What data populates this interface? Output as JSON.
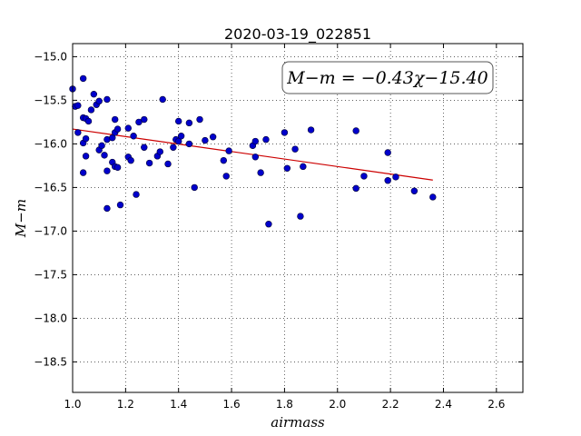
{
  "chart_data": {
    "type": "scatter",
    "title": "2020-03-19_022851",
    "xlabel": "airmass",
    "ylabel": "M−m",
    "xlim": [
      1.0,
      2.7
    ],
    "ylim": [
      -18.85,
      -14.85
    ],
    "y_inverted": true,
    "grid": true,
    "xticks": [
      "1.0",
      "1.2",
      "1.4",
      "1.6",
      "1.8",
      "2.0",
      "2.2",
      "2.4",
      "2.6"
    ],
    "yticks": [
      "−15.0",
      "−15.5",
      "−16.0",
      "−16.5",
      "−17.0",
      "−17.5",
      "−18.0",
      "−18.5"
    ],
    "annotation": "M−m = −0.43χ−15.40",
    "fit": {
      "slope": -0.43,
      "intercept": -15.4,
      "x_range": [
        1.0,
        2.36
      ],
      "color": "#cc0000"
    },
    "point_color": "#0000cc",
    "points": [
      {
        "x": 1.0,
        "y": -15.37
      },
      {
        "x": 1.01,
        "y": -15.57
      },
      {
        "x": 1.02,
        "y": -15.56
      },
      {
        "x": 1.02,
        "y": -15.87
      },
      {
        "x": 1.04,
        "y": -15.25
      },
      {
        "x": 1.04,
        "y": -15.7
      },
      {
        "x": 1.04,
        "y": -15.99
      },
      {
        "x": 1.05,
        "y": -15.71
      },
      {
        "x": 1.05,
        "y": -15.94
      },
      {
        "x": 1.04,
        "y": -16.33
      },
      {
        "x": 1.05,
        "y": -16.14
      },
      {
        "x": 1.06,
        "y": -15.74
      },
      {
        "x": 1.07,
        "y": -15.61
      },
      {
        "x": 1.08,
        "y": -15.43
      },
      {
        "x": 1.09,
        "y": -15.55
      },
      {
        "x": 1.1,
        "y": -15.51
      },
      {
        "x": 1.1,
        "y": -16.07
      },
      {
        "x": 1.11,
        "y": -16.02
      },
      {
        "x": 1.12,
        "y": -16.13
      },
      {
        "x": 1.13,
        "y": -15.49
      },
      {
        "x": 1.13,
        "y": -15.95
      },
      {
        "x": 1.13,
        "y": -16.31
      },
      {
        "x": 1.13,
        "y": -16.74
      },
      {
        "x": 1.15,
        "y": -16.21
      },
      {
        "x": 1.15,
        "y": -15.93
      },
      {
        "x": 1.16,
        "y": -15.72
      },
      {
        "x": 1.16,
        "y": -15.87
      },
      {
        "x": 1.17,
        "y": -15.83
      },
      {
        "x": 1.16,
        "y": -16.26
      },
      {
        "x": 1.17,
        "y": -16.27
      },
      {
        "x": 1.18,
        "y": -16.7
      },
      {
        "x": 1.21,
        "y": -15.82
      },
      {
        "x": 1.21,
        "y": -16.15
      },
      {
        "x": 1.22,
        "y": -16.19
      },
      {
        "x": 1.23,
        "y": -15.91
      },
      {
        "x": 1.24,
        "y": -16.58
      },
      {
        "x": 1.25,
        "y": -15.75
      },
      {
        "x": 1.27,
        "y": -15.72
      },
      {
        "x": 1.27,
        "y": -16.04
      },
      {
        "x": 1.29,
        "y": -16.22
      },
      {
        "x": 1.32,
        "y": -16.14
      },
      {
        "x": 1.33,
        "y": -16.09
      },
      {
        "x": 1.34,
        "y": -15.49
      },
      {
        "x": 1.36,
        "y": -16.23
      },
      {
        "x": 1.38,
        "y": -16.04
      },
      {
        "x": 1.39,
        "y": -15.95
      },
      {
        "x": 1.4,
        "y": -15.97
      },
      {
        "x": 1.4,
        "y": -15.74
      },
      {
        "x": 1.41,
        "y": -15.91
      },
      {
        "x": 1.44,
        "y": -15.76
      },
      {
        "x": 1.44,
        "y": -16.0
      },
      {
        "x": 1.46,
        "y": -16.5
      },
      {
        "x": 1.48,
        "y": -15.72
      },
      {
        "x": 1.5,
        "y": -15.96
      },
      {
        "x": 1.53,
        "y": -15.92
      },
      {
        "x": 1.57,
        "y": -16.19
      },
      {
        "x": 1.58,
        "y": -16.37
      },
      {
        "x": 1.59,
        "y": -16.08
      },
      {
        "x": 1.68,
        "y": -16.02
      },
      {
        "x": 1.69,
        "y": -16.15
      },
      {
        "x": 1.69,
        "y": -15.97
      },
      {
        "x": 1.71,
        "y": -16.33
      },
      {
        "x": 1.73,
        "y": -15.95
      },
      {
        "x": 1.74,
        "y": -16.92
      },
      {
        "x": 1.8,
        "y": -15.87
      },
      {
        "x": 1.81,
        "y": -16.28
      },
      {
        "x": 1.84,
        "y": -16.06
      },
      {
        "x": 1.86,
        "y": -16.83
      },
      {
        "x": 1.87,
        "y": -16.26
      },
      {
        "x": 1.9,
        "y": -15.84
      },
      {
        "x": 2.07,
        "y": -15.85
      },
      {
        "x": 2.07,
        "y": -16.51
      },
      {
        "x": 2.1,
        "y": -16.37
      },
      {
        "x": 2.19,
        "y": -16.1
      },
      {
        "x": 2.19,
        "y": -16.42
      },
      {
        "x": 2.22,
        "y": -16.38
      },
      {
        "x": 2.29,
        "y": -16.54
      },
      {
        "x": 2.36,
        "y": -16.61
      }
    ]
  }
}
